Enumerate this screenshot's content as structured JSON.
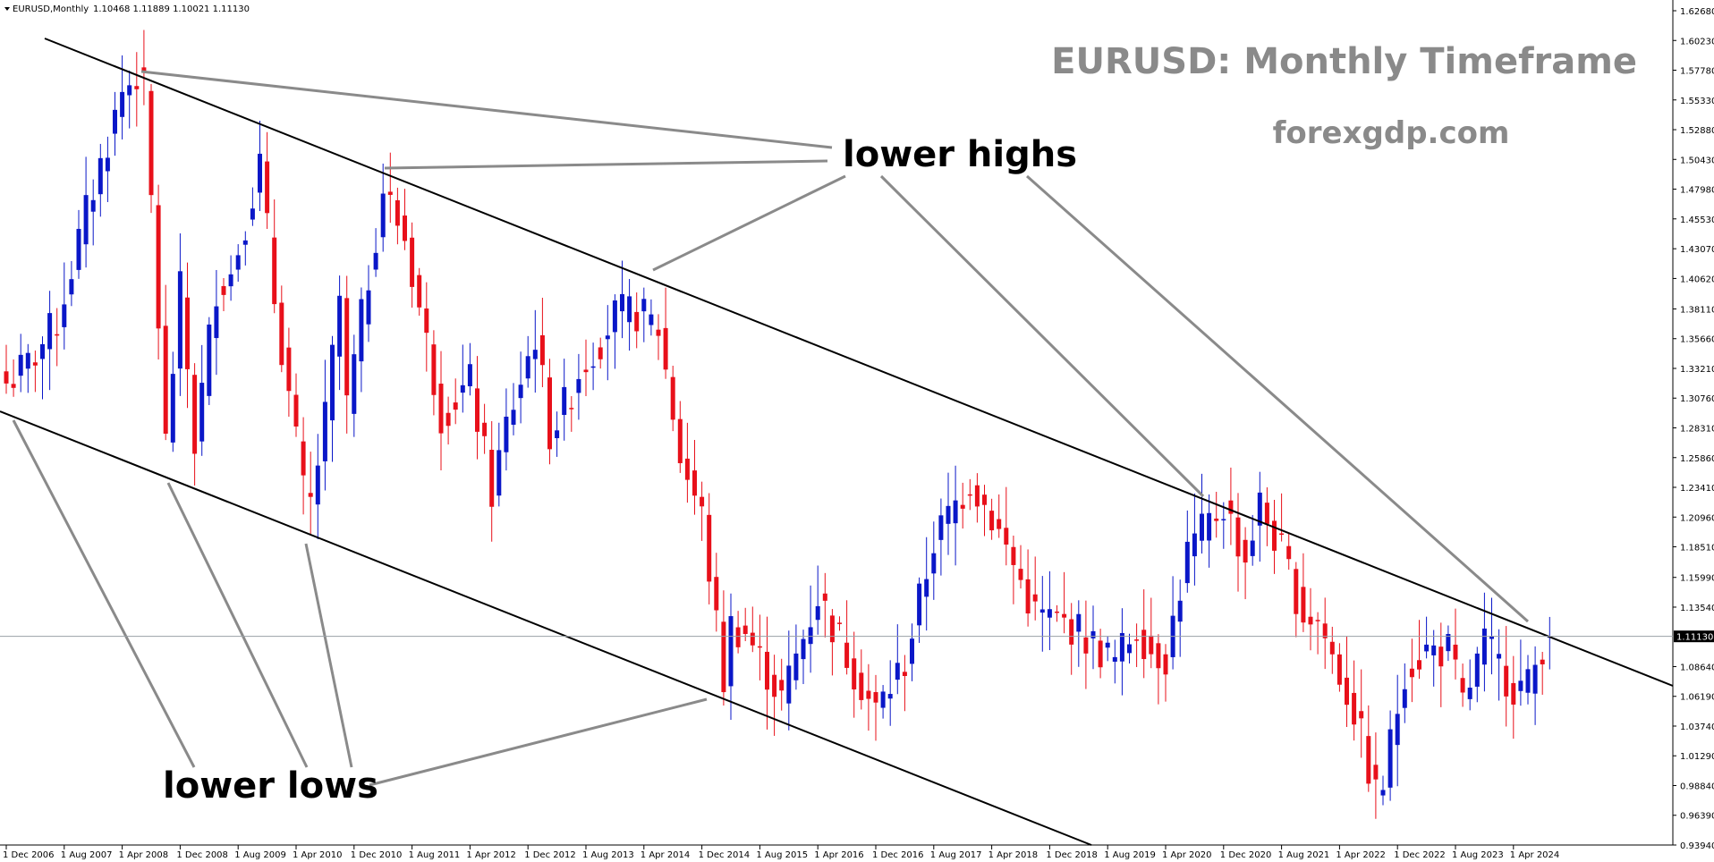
{
  "header": {
    "symbol": "EURUSD,Monthly",
    "ohlc": "1.10468 1.11889 1.10021 1.11130"
  },
  "title": "EURUSD: Monthly Timeframe",
  "site": "forexgdp.com",
  "annotations": {
    "upper": "lower highs",
    "lower": "lower lows"
  },
  "colors": {
    "bull": "#0a17c8",
    "bear": "#e8101a",
    "trendline": "#000000",
    "pointer": "#8a8a8a",
    "price_line": "#9aa0a6"
  },
  "chart_data": {
    "type": "candlestick",
    "title": "EURUSD: Monthly Timeframe",
    "ylim": [
      0.9394,
      1.6268
    ],
    "y_ticks": [
      "1.62680",
      "1.60230",
      "1.57780",
      "1.55330",
      "1.52880",
      "1.50430",
      "1.47980",
      "1.45530",
      "1.43070",
      "1.40620",
      "1.38110",
      "1.35660",
      "1.33210",
      "1.30760",
      "1.28310",
      "1.25860",
      "1.23410",
      "1.20960",
      "1.18510",
      "1.15990",
      "1.13540",
      "1.11130",
      "1.08640",
      "1.06190",
      "1.03740",
      "1.01290",
      "0.98840",
      "0.96390",
      "0.93940"
    ],
    "x_ticks": [
      "1 Dec 2006",
      "1 Aug 2007",
      "1 Apr 2008",
      "1 Dec 2008",
      "1 Aug 2009",
      "1 Apr 2010",
      "1 Dec 2010",
      "1 Aug 2011",
      "1 Apr 2012",
      "1 Dec 2012",
      "1 Aug 2013",
      "1 Apr 2014",
      "1 Dec 2014",
      "1 Aug 2015",
      "1 Apr 2016",
      "1 Dec 2016",
      "1 Aug 2017",
      "1 Apr 2018",
      "1 Dec 2018",
      "1 Aug 2019",
      "1 Apr 2020",
      "1 Dec 2020",
      "1 Aug 2021",
      "1 Apr 2022",
      "1 Dec 2022",
      "1 Aug 2023",
      "1 Apr 2024"
    ],
    "current_price": "1.11130",
    "close_anchors": [
      [
        "2006-12",
        1.32
      ],
      [
        "2007-03",
        1.335
      ],
      [
        "2007-07",
        1.37
      ],
      [
        "2007-11",
        1.46
      ],
      [
        "2008-02",
        1.52
      ],
      [
        "2008-04",
        1.56
      ],
      [
        "2008-06",
        1.575
      ],
      [
        "2008-07",
        1.56
      ],
      [
        "2008-08",
        1.47
      ],
      [
        "2008-10",
        1.27
      ],
      [
        "2008-12",
        1.395
      ],
      [
        "2009-02",
        1.27
      ],
      [
        "2009-05",
        1.4
      ],
      [
        "2009-07",
        1.41
      ],
      [
        "2009-11",
        1.5
      ],
      [
        "2010-01",
        1.39
      ],
      [
        "2010-05",
        1.23
      ],
      [
        "2010-06",
        1.22
      ],
      [
        "2010-08",
        1.29
      ],
      [
        "2010-10",
        1.39
      ],
      [
        "2010-11",
        1.3
      ],
      [
        "2011-04",
        1.48
      ],
      [
        "2011-07",
        1.44
      ],
      [
        "2011-12",
        1.295
      ],
      [
        "2012-04",
        1.32
      ],
      [
        "2012-07",
        1.23
      ],
      [
        "2012-09",
        1.285
      ],
      [
        "2013-01",
        1.36
      ],
      [
        "2013-03",
        1.28
      ],
      [
        "2013-05",
        1.3
      ],
      [
        "2013-07",
        1.33
      ],
      [
        "2013-12",
        1.375
      ],
      [
        "2014-03",
        1.378
      ],
      [
        "2014-06",
        1.365
      ],
      [
        "2014-09",
        1.26
      ],
      [
        "2014-12",
        1.21
      ],
      [
        "2015-03",
        1.075
      ],
      [
        "2015-04",
        1.12
      ],
      [
        "2015-06",
        1.115
      ],
      [
        "2015-11",
        1.06
      ],
      [
        "2016-04",
        1.145
      ],
      [
        "2016-11",
        1.06
      ],
      [
        "2016-12",
        1.05
      ],
      [
        "2017-04",
        1.09
      ],
      [
        "2017-08",
        1.19
      ],
      [
        "2018-01",
        1.24
      ],
      [
        "2018-04",
        1.21
      ],
      [
        "2018-10",
        1.13
      ],
      [
        "2019-03",
        1.12
      ],
      [
        "2019-09",
        1.09
      ],
      [
        "2019-12",
        1.12
      ],
      [
        "2020-02",
        1.1
      ],
      [
        "2020-04",
        1.095
      ],
      [
        "2020-07",
        1.18
      ],
      [
        "2020-12",
        1.22
      ],
      [
        "2021-03",
        1.175
      ],
      [
        "2021-05",
        1.22
      ],
      [
        "2021-08",
        1.18
      ],
      [
        "2021-11",
        1.13
      ],
      [
        "2022-01",
        1.125
      ],
      [
        "2022-06",
        1.05
      ],
      [
        "2022-09",
        0.98
      ],
      [
        "2022-10",
        0.99
      ],
      [
        "2023-01",
        1.085
      ],
      [
        "2023-04",
        1.1
      ],
      [
        "2023-07",
        1.1
      ],
      [
        "2023-09",
        1.055
      ],
      [
        "2023-12",
        1.105
      ],
      [
        "2024-04",
        1.07
      ],
      [
        "2024-06",
        1.07
      ],
      [
        "2024-08",
        1.105
      ],
      [
        "2024-09",
        1.111
      ]
    ]
  }
}
